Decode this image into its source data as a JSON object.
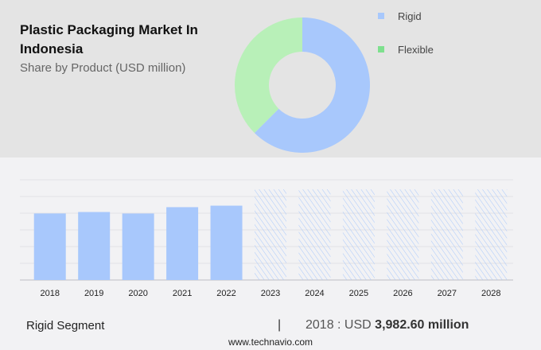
{
  "header": {
    "title": "Plastic Packaging Market In Indonesia",
    "subtitle": "Share by Product (USD million)"
  },
  "chart_data": [
    {
      "type": "pie",
      "donut": true,
      "categories": [
        "Rigid",
        "Flexible"
      ],
      "values": [
        62.5,
        37.5
      ],
      "colors": [
        "#a8c8fc",
        "#b8f0b8"
      ],
      "legend_colors": [
        "#a8c8fc",
        "#7ee08e"
      ],
      "legend": "right"
    },
    {
      "type": "bar",
      "categories": [
        "2018",
        "2019",
        "2020",
        "2021",
        "2022",
        "2023",
        "2024",
        "2025",
        "2026",
        "2027",
        "2028"
      ],
      "values": [
        3982.6,
        4070,
        3980,
        4360,
        4450,
        null,
        null,
        null,
        null,
        null,
        null
      ],
      "forecast": [
        "2023",
        "2024",
        "2025",
        "2026",
        "2027",
        "2028"
      ],
      "ylim": [
        0,
        6000
      ],
      "grid": true,
      "color": "#a8c8fc"
    }
  ],
  "footer": {
    "segment": "Rigid Segment",
    "separator": "|",
    "year_label": "2018 : USD",
    "value": "3,982.60 million",
    "site": "www.technavio.com"
  }
}
